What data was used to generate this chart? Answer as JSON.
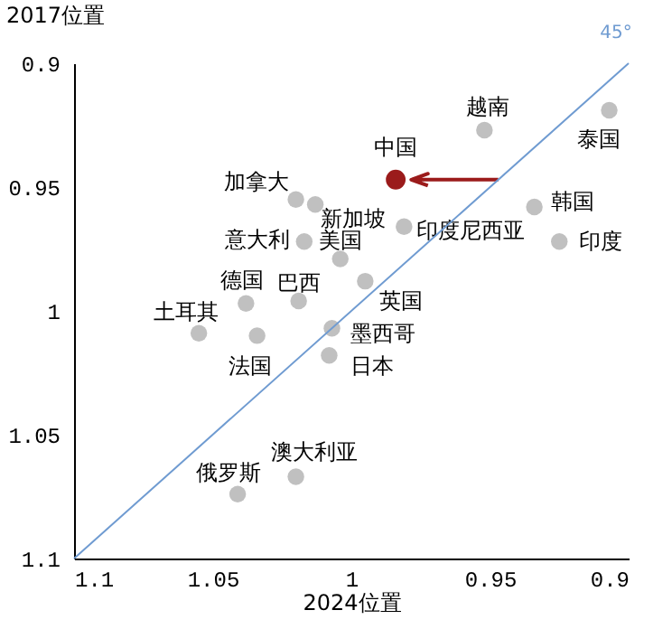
{
  "chart_data": {
    "type": "scatter",
    "xlabel": "2024位置",
    "ylabel": "2017位置",
    "xlim": [
      1.1,
      0.9
    ],
    "ylim": [
      1.1,
      0.9
    ],
    "xticks": [
      1.1,
      1.05,
      1,
      0.95,
      0.9
    ],
    "yticks": [
      0.9,
      0.95,
      1,
      1.05,
      1.1
    ],
    "grid": false,
    "marker": "circle",
    "annotations": [
      "45°"
    ],
    "series": [
      {
        "name": "越南",
        "color": "#c0c0c0",
        "x": [
          0.952
        ],
        "values": [
          0.927
        ]
      },
      {
        "name": "泰国",
        "color": "#c0c0c0",
        "x": [
          0.907
        ],
        "values": [
          0.919
        ]
      },
      {
        "name": "中国",
        "color": "#9b1b1b",
        "x": [
          0.984
        ],
        "values": [
          0.947
        ]
      },
      {
        "name": "加拿大",
        "color": "#c0c0c0",
        "x": [
          1.02
        ],
        "values": [
          0.955
        ]
      },
      {
        "name": "新加坡",
        "color": "#c0c0c0",
        "x": [
          1.013
        ],
        "values": [
          0.957
        ]
      },
      {
        "name": "韩国",
        "color": "#c0c0c0",
        "x": [
          0.934
        ],
        "values": [
          0.958
        ]
      },
      {
        "name": "印度尼西亚",
        "color": "#c0c0c0",
        "x": [
          0.981
        ],
        "values": [
          0.966
        ]
      },
      {
        "name": "印度",
        "color": "#c0c0c0",
        "x": [
          0.925
        ],
        "values": [
          0.972
        ]
      },
      {
        "name": "意大利",
        "color": "#c0c0c0",
        "x": [
          1.017
        ],
        "values": [
          0.972
        ]
      },
      {
        "name": "美国",
        "color": "#c0c0c0",
        "x": [
          1.004
        ],
        "values": [
          0.979
        ]
      },
      {
        "name": "英国",
        "color": "#c0c0c0",
        "x": [
          0.995
        ],
        "values": [
          0.988
        ]
      },
      {
        "name": "巴西",
        "color": "#c0c0c0",
        "x": [
          1.019
        ],
        "values": [
          0.996
        ]
      },
      {
        "name": "德国",
        "color": "#c0c0c0",
        "x": [
          1.038
        ],
        "values": [
          0.997
        ]
      },
      {
        "name": "土耳其",
        "color": "#c0c0c0",
        "x": [
          1.055
        ],
        "values": [
          1.009
        ]
      },
      {
        "name": "法国",
        "color": "#c0c0c0",
        "x": [
          1.034
        ],
        "values": [
          1.01
        ]
      },
      {
        "name": "墨西哥",
        "color": "#c0c0c0",
        "x": [
          1.007
        ],
        "values": [
          1.007
        ]
      },
      {
        "name": "日本",
        "color": "#c0c0c0",
        "x": [
          1.008
        ],
        "values": [
          1.018
        ]
      },
      {
        "name": "澳大利亚",
        "color": "#c0c0c0",
        "x": [
          1.02
        ],
        "values": [
          1.067
        ]
      },
      {
        "name": "俄罗斯",
        "color": "#c0c0c0",
        "x": [
          1.041
        ],
        "values": [
          1.074
        ]
      },
      {
        "type": "line",
        "marker": "none",
        "line_style": "solid",
        "color": "#6f9bd1",
        "x": [
          1.1,
          0.9
        ],
        "values": [
          1.1,
          0.9
        ]
      }
    ]
  }
}
